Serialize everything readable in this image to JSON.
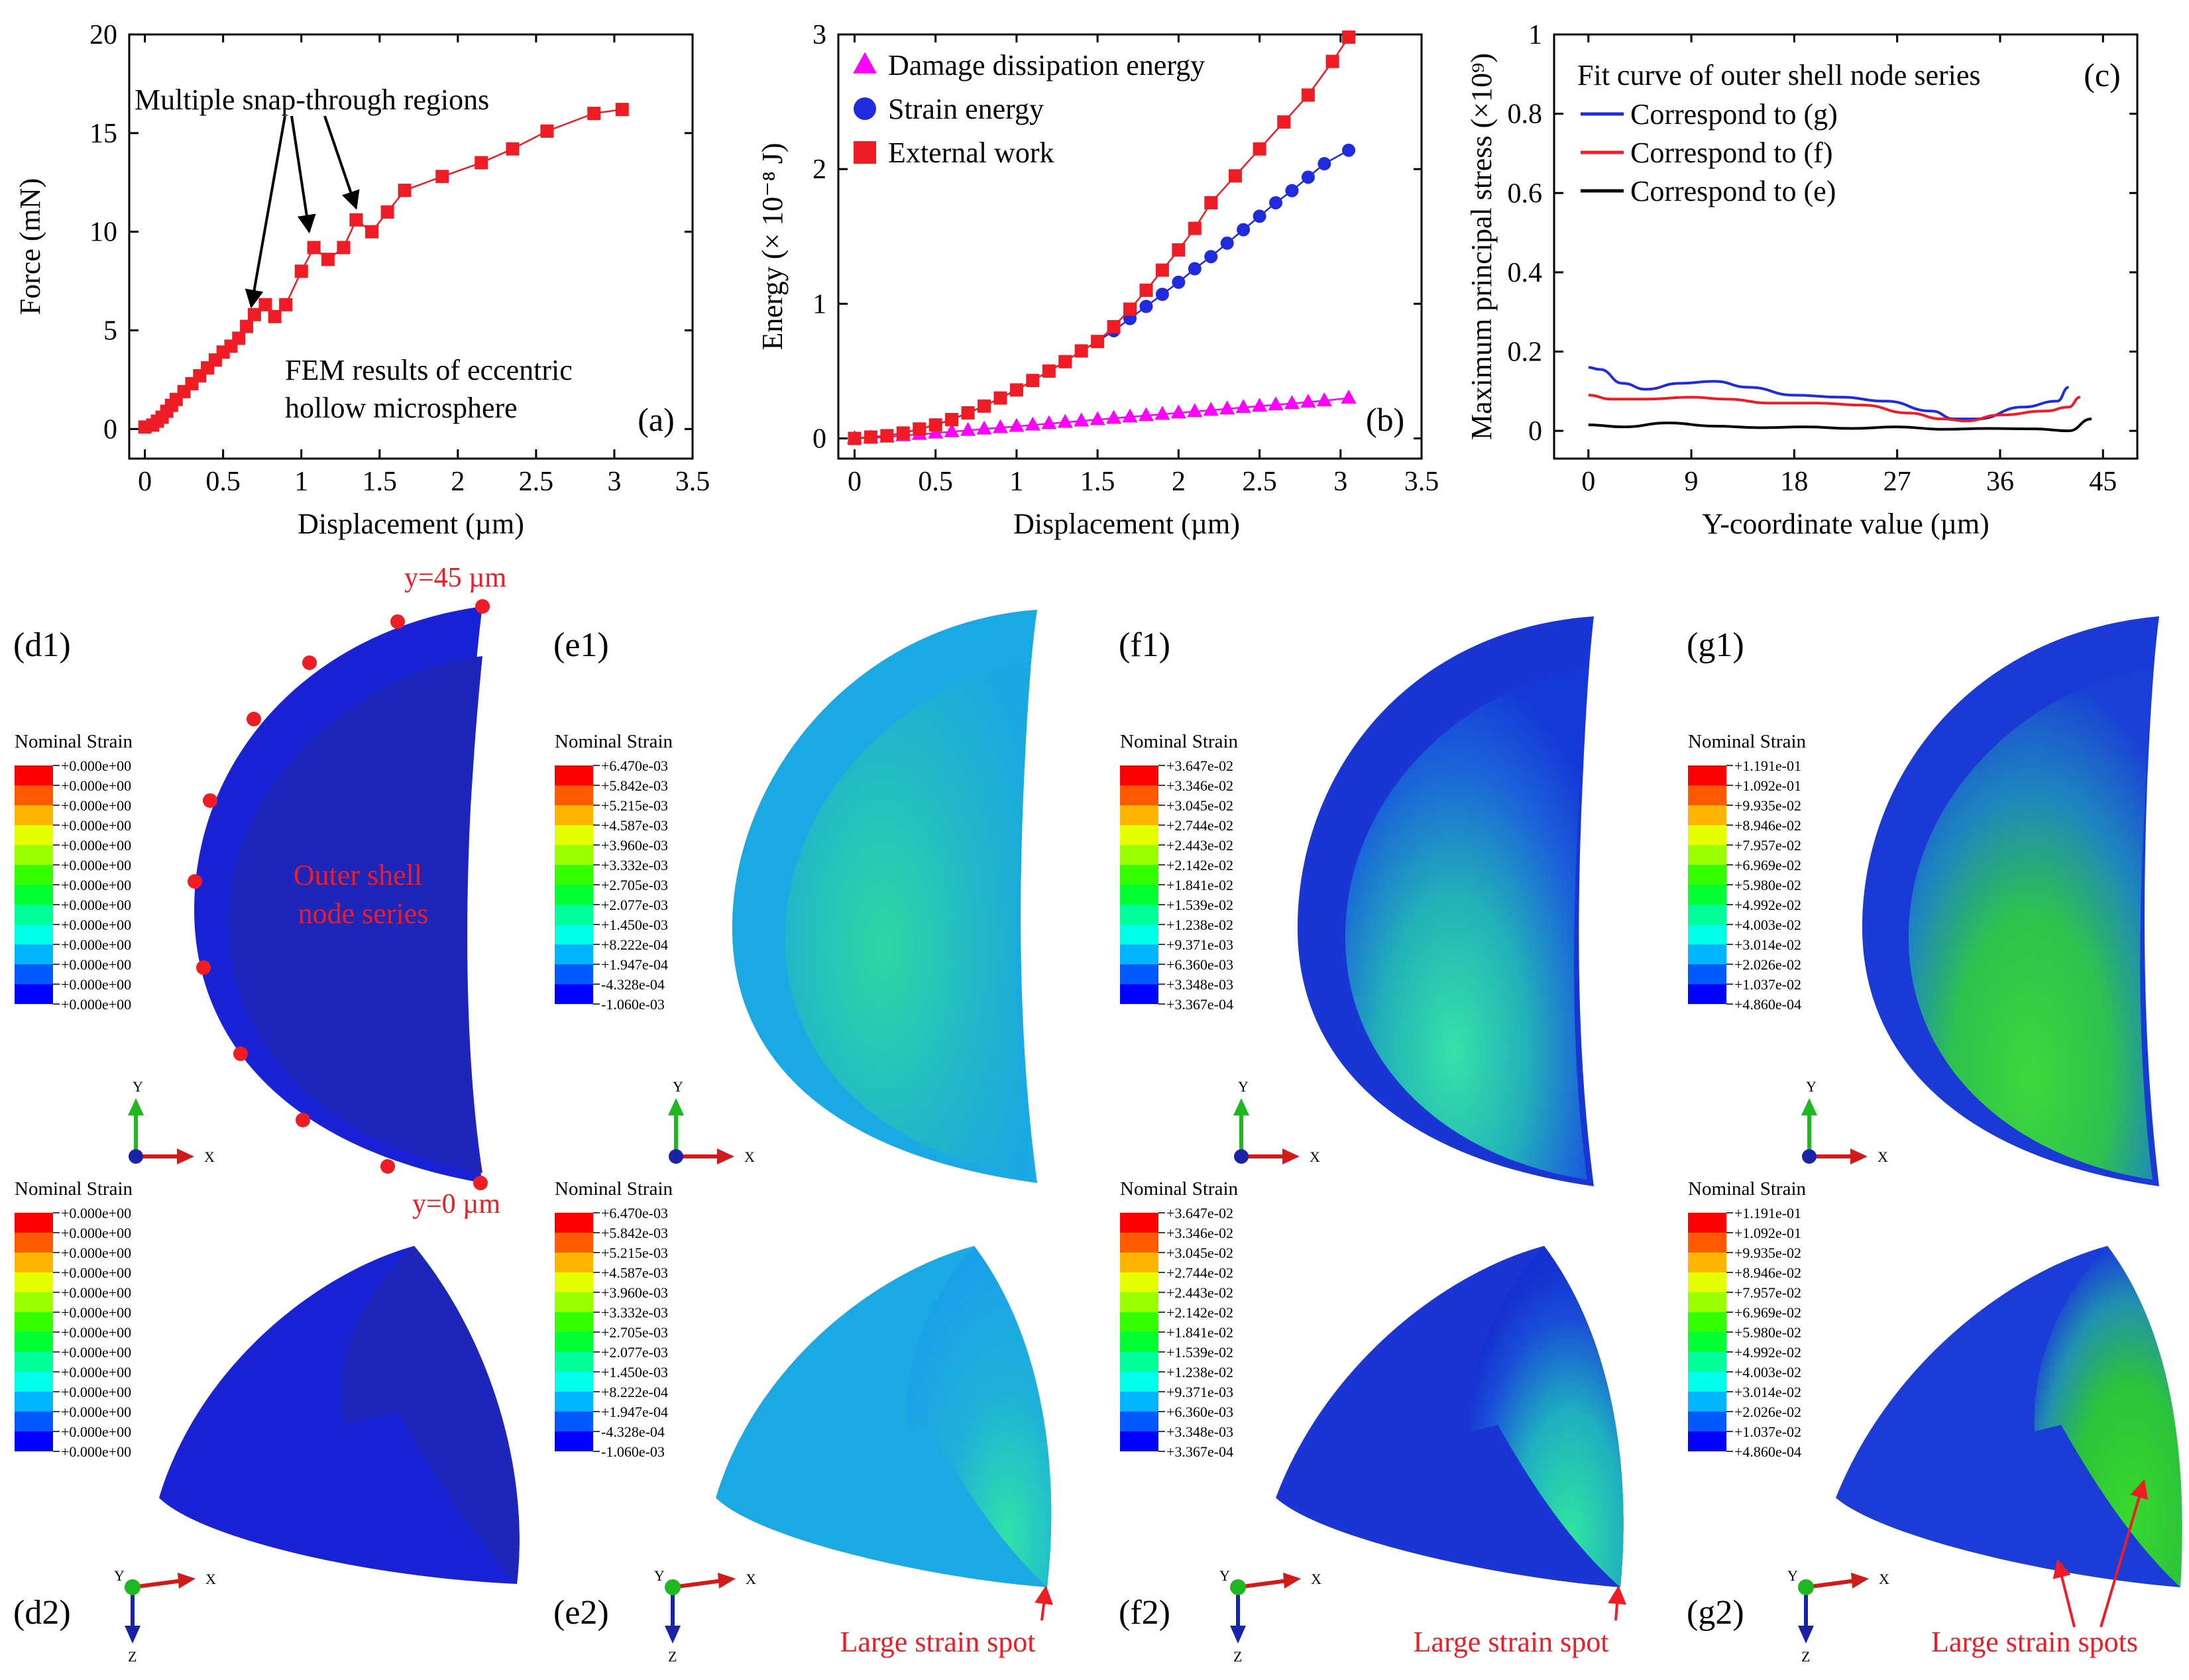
{
  "chart_data": [
    {
      "id": "a",
      "type": "line",
      "panel_label": "(a)",
      "xlabel": "Displacement (µm)",
      "ylabel": "Force (mN)",
      "xlim": [
        -0.1,
        3.5
      ],
      "ylim": [
        -1.5,
        20
      ],
      "xticks": [
        0,
        0.5,
        1,
        1.5,
        2,
        2.5,
        3,
        3.5
      ],
      "yticks": [
        0,
        5,
        10,
        15,
        20
      ],
      "annotation_top": "Multiple  snap-through regions",
      "annotation_bottom_line1": "FEM results of  eccentric",
      "annotation_bottom_line2": "hollow microsphere",
      "arrow_targets": [
        {
          "x": 0.68,
          "y": 5.6
        },
        {
          "x": 1.05,
          "y": 9.4
        },
        {
          "x": 1.35,
          "y": 10.6
        }
      ],
      "series": [
        {
          "name": "Force",
          "color": "#ee1c25",
          "marker": "square",
          "x": [
            0,
            0.05,
            0.08,
            0.11,
            0.14,
            0.17,
            0.2,
            0.25,
            0.3,
            0.35,
            0.4,
            0.45,
            0.5,
            0.55,
            0.6,
            0.65,
            0.7,
            0.77,
            0.83,
            0.9,
            1.0,
            1.08,
            1.17,
            1.27,
            1.35,
            1.45,
            1.55,
            1.66,
            1.9,
            2.15,
            2.35,
            2.57,
            2.87,
            3.05
          ],
          "y": [
            0.1,
            0.2,
            0.4,
            0.6,
            0.9,
            1.2,
            1.5,
            1.9,
            2.3,
            2.7,
            3.1,
            3.5,
            3.9,
            4.2,
            4.6,
            5.2,
            5.8,
            6.3,
            5.7,
            6.3,
            8.0,
            9.2,
            8.6,
            9.2,
            10.6,
            10.0,
            11.0,
            12.1,
            12.8,
            13.5,
            14.2,
            15.1,
            16.0,
            16.2
          ]
        }
      ]
    },
    {
      "id": "b",
      "type": "line",
      "panel_label": "(b)",
      "xlabel": "Displacement (µm)",
      "ylabel": "Energy (× 10⁻⁸ J)",
      "xlim": [
        -0.1,
        3.5
      ],
      "ylim": [
        -0.15,
        3
      ],
      "xticks": [
        0,
        0.5,
        1,
        1.5,
        2,
        2.5,
        3,
        3.5
      ],
      "yticks": [
        0,
        1,
        2,
        3
      ],
      "series": [
        {
          "name": "Damage dissipation energy",
          "color": "#ff00ff",
          "marker": "triangle",
          "x": [
            0,
            0.1,
            0.2,
            0.3,
            0.4,
            0.5,
            0.6,
            0.7,
            0.8,
            0.9,
            1.0,
            1.1,
            1.2,
            1.3,
            1.4,
            1.5,
            1.6,
            1.7,
            1.8,
            1.9,
            2.0,
            2.1,
            2.2,
            2.3,
            2.4,
            2.5,
            2.6,
            2.7,
            2.8,
            2.9,
            3.05
          ],
          "y": [
            0,
            0.005,
            0.01,
            0.02,
            0.03,
            0.04,
            0.05,
            0.06,
            0.07,
            0.08,
            0.09,
            0.1,
            0.11,
            0.12,
            0.13,
            0.14,
            0.15,
            0.16,
            0.17,
            0.18,
            0.19,
            0.2,
            0.21,
            0.22,
            0.23,
            0.24,
            0.25,
            0.26,
            0.27,
            0.28,
            0.3
          ]
        },
        {
          "name": "Strain energy",
          "color": "#1f2bdc",
          "marker": "circle",
          "x": [
            0,
            0.1,
            0.2,
            0.3,
            0.4,
            0.5,
            0.6,
            0.7,
            0.8,
            0.9,
            1.0,
            1.1,
            1.2,
            1.3,
            1.4,
            1.5,
            1.6,
            1.7,
            1.8,
            1.9,
            2.0,
            2.1,
            2.2,
            2.3,
            2.4,
            2.5,
            2.6,
            2.7,
            2.8,
            2.9,
            3.05
          ],
          "y": [
            0,
            0.01,
            0.02,
            0.04,
            0.07,
            0.1,
            0.14,
            0.19,
            0.24,
            0.3,
            0.36,
            0.43,
            0.5,
            0.57,
            0.65,
            0.72,
            0.8,
            0.89,
            0.98,
            1.07,
            1.16,
            1.26,
            1.35,
            1.45,
            1.55,
            1.65,
            1.75,
            1.84,
            1.94,
            2.04,
            2.14
          ]
        },
        {
          "name": "External work",
          "color": "#ee1c25",
          "marker": "square",
          "x": [
            0,
            0.1,
            0.2,
            0.3,
            0.4,
            0.5,
            0.6,
            0.7,
            0.8,
            0.9,
            1.0,
            1.1,
            1.2,
            1.3,
            1.4,
            1.5,
            1.6,
            1.7,
            1.8,
            1.9,
            2.0,
            2.1,
            2.2,
            2.35,
            2.5,
            2.65,
            2.8,
            2.95,
            3.05
          ],
          "y": [
            0,
            0.01,
            0.02,
            0.04,
            0.07,
            0.1,
            0.14,
            0.19,
            0.24,
            0.3,
            0.36,
            0.43,
            0.5,
            0.57,
            0.65,
            0.72,
            0.83,
            0.96,
            1.1,
            1.25,
            1.4,
            1.56,
            1.75,
            1.95,
            2.15,
            2.35,
            2.55,
            2.8,
            2.98
          ]
        }
      ]
    },
    {
      "id": "c",
      "type": "line",
      "panel_label": "(c)",
      "xlabel": "Y-coordinate value (µm)",
      "ylabel": "Maximum principal stress (×10⁹)",
      "xlim": [
        -3,
        48
      ],
      "ylim": [
        -0.07,
        1
      ],
      "xticks": [
        0,
        9,
        18,
        27,
        36,
        45
      ],
      "yticks": [
        "0",
        "0.2",
        "0.4",
        "0.6",
        "0.8",
        "1"
      ],
      "legend_title": "Fit curve of outer shell node series",
      "series": [
        {
          "name": "Correspond to (g)",
          "color": "#1f2bdc",
          "x": [
            0,
            1,
            3,
            5,
            8,
            11,
            14,
            18,
            22,
            26,
            30,
            32,
            34,
            38,
            41,
            42
          ],
          "y": [
            0.16,
            0.155,
            0.12,
            0.105,
            0.12,
            0.125,
            0.11,
            0.09,
            0.085,
            0.075,
            0.05,
            0.03,
            0.03,
            0.06,
            0.075,
            0.11
          ]
        },
        {
          "name": "Correspond to (f)",
          "color": "#ee1c25",
          "x": [
            0,
            2,
            5,
            9,
            12,
            16,
            20,
            24,
            28,
            31,
            33,
            36,
            40,
            42,
            43
          ],
          "y": [
            0.09,
            0.08,
            0.08,
            0.085,
            0.08,
            0.07,
            0.07,
            0.065,
            0.045,
            0.03,
            0.025,
            0.04,
            0.05,
            0.06,
            0.085
          ]
        },
        {
          "name": "Correspond to (e)",
          "color": "#000000",
          "x": [
            0,
            3,
            7,
            11,
            15,
            19,
            23,
            27,
            31,
            35,
            39,
            42,
            44
          ],
          "y": [
            0.015,
            0.01,
            0.02,
            0.012,
            0.008,
            0.01,
            0.006,
            0.01,
            0.004,
            0.006,
            0.005,
            0.0,
            0.03
          ]
        }
      ]
    }
  ],
  "panels": {
    "d1": {
      "label": "(d1)",
      "legend_title": "Nominal Strain",
      "values": [
        "+0.000e+00",
        "+0.000e+00",
        "+0.000e+00",
        "+0.000e+00",
        "+0.000e+00",
        "+0.000e+00",
        "+0.000e+00",
        "+0.000e+00",
        "+0.000e+00",
        "+0.000e+00",
        "+0.000e+00",
        "+0.000e+00",
        "+0.000e+00"
      ],
      "top_label": "y=45 µm",
      "bottom_label": "y=0 µm",
      "center_label_line1": "Outer shell",
      "center_label_line2": "node series"
    },
    "e1": {
      "label": "(e1)",
      "legend_title": "Nominal Strain",
      "values": [
        "+6.470e-03",
        "+5.842e-03",
        "+5.215e-03",
        "+4.587e-03",
        "+3.960e-03",
        "+3.332e-03",
        "+2.705e-03",
        "+2.077e-03",
        "+1.450e-03",
        "+8.222e-04",
        "+1.947e-04",
        "-4.328e-04",
        "-1.060e-03"
      ]
    },
    "f1": {
      "label": "(f1)",
      "legend_title": "Nominal Strain",
      "values": [
        "+3.647e-02",
        "+3.346e-02",
        "+3.045e-02",
        "+2.744e-02",
        "+2.443e-02",
        "+2.142e-02",
        "+1.841e-02",
        "+1.539e-02",
        "+1.238e-02",
        "+9.371e-03",
        "+6.360e-03",
        "+3.348e-03",
        "+3.367e-04"
      ]
    },
    "g1": {
      "label": "(g1)",
      "legend_title": "Nominal Strain",
      "values": [
        "+1.191e-01",
        "+1.092e-01",
        "+9.935e-02",
        "+8.946e-02",
        "+7.957e-02",
        "+6.969e-02",
        "+5.980e-02",
        "+4.992e-02",
        "+4.003e-02",
        "+3.014e-02",
        "+2.026e-02",
        "+1.037e-02",
        "+4.860e-04"
      ]
    },
    "d2": {
      "label": "(d2)",
      "legend_title": "Nominal Strain",
      "values": [
        "+0.000e+00",
        "+0.000e+00",
        "+0.000e+00",
        "+0.000e+00",
        "+0.000e+00",
        "+0.000e+00",
        "+0.000e+00",
        "+0.000e+00",
        "+0.000e+00",
        "+0.000e+00",
        "+0.000e+00",
        "+0.000e+00",
        "+0.000e+00"
      ]
    },
    "e2": {
      "label": "(e2)",
      "legend_title": "Nominal Strain",
      "spot_label": "Large strain spot",
      "values": [
        "+6.470e-03",
        "+5.842e-03",
        "+5.215e-03",
        "+4.587e-03",
        "+3.960e-03",
        "+3.332e-03",
        "+2.705e-03",
        "+2.077e-03",
        "+1.450e-03",
        "+8.222e-04",
        "+1.947e-04",
        "-4.328e-04",
        "-1.060e-03"
      ]
    },
    "f2": {
      "label": "(f2)",
      "legend_title": "Nominal Strain",
      "spot_label": "Large strain spot",
      "values": [
        "+3.647e-02",
        "+3.346e-02",
        "+3.045e-02",
        "+2.744e-02",
        "+2.443e-02",
        "+2.142e-02",
        "+1.841e-02",
        "+1.539e-02",
        "+1.238e-02",
        "+9.371e-03",
        "+6.360e-03",
        "+3.348e-03",
        "+3.367e-04"
      ]
    },
    "g2": {
      "label": "(g2)",
      "legend_title": "Nominal Strain",
      "spot_label": "Large strain spots",
      "values": [
        "+1.191e-01",
        "+1.092e-01",
        "+9.935e-02",
        "+8.946e-02",
        "+7.957e-02",
        "+6.969e-02",
        "+5.980e-02",
        "+4.992e-02",
        "+4.003e-02",
        "+3.014e-02",
        "+2.026e-02",
        "+1.037e-02",
        "+4.860e-04"
      ]
    }
  },
  "axis_triad": {
    "x": "X",
    "y": "Y",
    "z": "Z"
  },
  "colorbar_colors": [
    "#ff0000",
    "#ff5a00",
    "#ffb400",
    "#e6ff00",
    "#9aff00",
    "#33ff00",
    "#00ff33",
    "#00ff9a",
    "#00ffe6",
    "#00b4ff",
    "#005aff",
    "#0000ff"
  ],
  "colors": {
    "red": "#ee1c25",
    "blue": "#1f2bdc",
    "magenta": "#ff00ff",
    "deep_blue": "#1a22d6"
  }
}
